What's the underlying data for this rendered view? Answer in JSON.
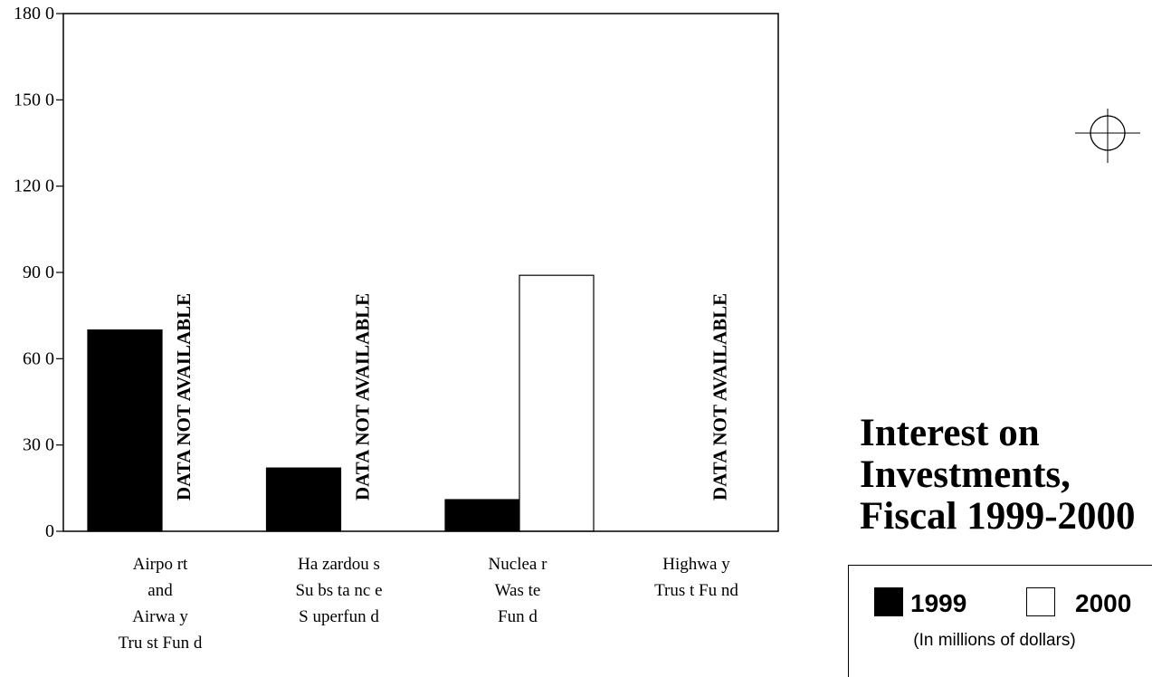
{
  "chart_data": {
    "type": "bar",
    "title": [
      "Interest on",
      "Investments,",
      "Fiscal 1999-2000"
    ],
    "categories": [
      [
        "Airpo rt",
        "and",
        "Airwa y",
        "Tru st Fun d"
      ],
      [
        "Ha zardou s",
        "Su bs ta nc e",
        "S uperfun d"
      ],
      [
        "Nuclea r",
        "Was te",
        "Fun d"
      ],
      [
        "Highwa y",
        "Trus t Fu nd"
      ]
    ],
    "series": [
      {
        "name": "1999",
        "color": "#000000",
        "values": [
          700,
          220,
          110,
          null
        ]
      },
      {
        "name": "2000",
        "color": "#ffffff",
        "values": [
          null,
          null,
          890,
          null
        ]
      }
    ],
    "not_available_label": "DATA NOT AVAILABLE",
    "not_available": [
      {
        "category": 0,
        "series": 1
      },
      {
        "category": 1,
        "series": 1
      },
      {
        "category": 3,
        "series": 1
      }
    ],
    "yticks": [
      "180 0",
      "150 0",
      "120 0",
      "90 0",
      "60 0",
      "30 0",
      "0"
    ],
    "ylim": [
      0,
      1800
    ],
    "grid": false,
    "legend_position": "bottom-right",
    "units_note": "(In millions of dollars)"
  }
}
